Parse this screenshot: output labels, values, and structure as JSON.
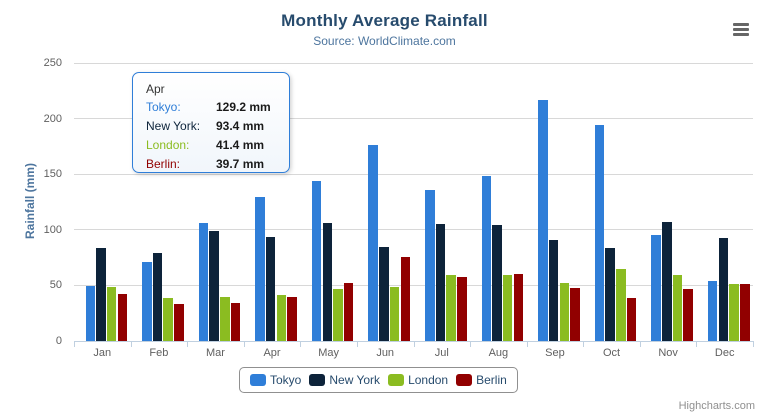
{
  "chart_data": {
    "type": "bar",
    "title": "Monthly Average Rainfall",
    "subtitle": "Source: WorldClimate.com",
    "categories": [
      "Jan",
      "Feb",
      "Mar",
      "Apr",
      "May",
      "Jun",
      "Jul",
      "Aug",
      "Sep",
      "Oct",
      "Nov",
      "Dec"
    ],
    "series": [
      {
        "name": "Tokyo",
        "color": "#2f7ed8",
        "values": [
          49.9,
          71.5,
          106.4,
          129.2,
          144.0,
          176.0,
          135.6,
          148.5,
          216.4,
          194.1,
          95.6,
          54.4
        ]
      },
      {
        "name": "New York",
        "color": "#0d233a",
        "values": [
          83.6,
          78.8,
          98.5,
          93.4,
          106.0,
          84.5,
          105.0,
          104.3,
          91.2,
          83.5,
          106.6,
          92.3
        ]
      },
      {
        "name": "London",
        "color": "#8bbc21",
        "values": [
          48.9,
          38.8,
          39.3,
          41.4,
          47.0,
          48.3,
          59.0,
          59.6,
          52.4,
          65.2,
          59.3,
          51.2
        ]
      },
      {
        "name": "Berlin",
        "color": "#910000",
        "values": [
          42.4,
          33.2,
          34.5,
          39.7,
          52.6,
          75.5,
          57.4,
          60.4,
          47.6,
          39.1,
          46.8,
          51.1
        ]
      }
    ],
    "xlabel": "",
    "ylabel": "Rainfall (mm)",
    "ylim": [
      0,
      250
    ],
    "yticks": [
      0,
      50,
      100,
      150,
      200,
      250
    ],
    "grid": "horizontal",
    "legend_position": "bottom"
  },
  "tooltip": {
    "header": "Apr",
    "border_color": "#2f7ed8",
    "rows": [
      {
        "name": "Tokyo:",
        "value": "129.2 mm",
        "color": "#2f7ed8"
      },
      {
        "name": "New York:",
        "value": "93.4 mm",
        "color": "#0d233a"
      },
      {
        "name": "London:",
        "value": "41.4 mm",
        "color": "#8bbc21"
      },
      {
        "name": "Berlin:",
        "value": "39.7 mm",
        "color": "#910000"
      }
    ]
  },
  "colors": {
    "title": "#274b6d",
    "subtitle": "#4d759e",
    "axis_labels": "#606060",
    "gridline": "#d8d8d8",
    "axis_line": "#c0d0e0",
    "legend_border": "#909090"
  },
  "icons": {
    "menu": "hamburger-menu-icon"
  },
  "credits": {
    "label": "Highcharts.com"
  }
}
